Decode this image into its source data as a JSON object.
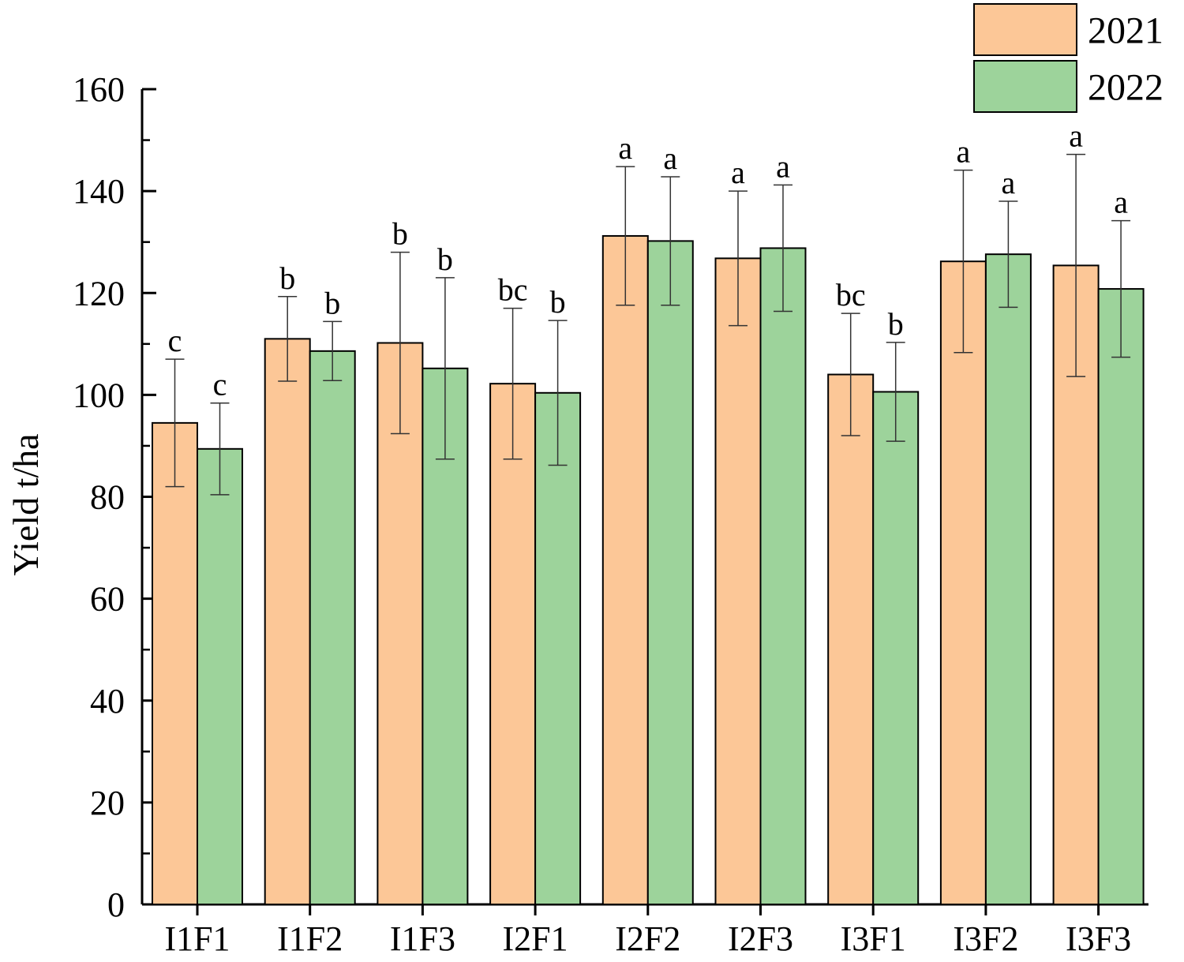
{
  "chart_data": {
    "type": "bar",
    "title": "",
    "xlabel": "",
    "ylabel": "Yield t/ha",
    "ylim": [
      0,
      160
    ],
    "yticks": [
      0,
      20,
      40,
      60,
      80,
      100,
      120,
      140,
      160
    ],
    "grid": false,
    "legend_position": "top-right",
    "categories": [
      "I1F1",
      "I1F2",
      "I1F3",
      "I2F1",
      "I2F2",
      "I2F3",
      "I3F1",
      "I3F2",
      "I3F3"
    ],
    "series": [
      {
        "name": "2021",
        "color": "#FCC797",
        "values": [
          94.5,
          111.0,
          110.2,
          102.2,
          131.2,
          126.8,
          104.0,
          126.2,
          125.4
        ],
        "error": [
          12.5,
          8.3,
          17.8,
          14.8,
          13.6,
          13.2,
          12.0,
          17.9,
          21.8
        ],
        "significance": [
          "c",
          "b",
          "b",
          "bc",
          "a",
          "a",
          "bc",
          "a",
          "a"
        ]
      },
      {
        "name": "2022",
        "color": "#9DD39B",
        "values": [
          89.4,
          108.6,
          105.2,
          100.4,
          130.2,
          128.8,
          100.6,
          127.6,
          120.8
        ],
        "error": [
          9.0,
          5.8,
          17.8,
          14.2,
          12.6,
          12.4,
          9.7,
          10.4,
          13.4
        ],
        "significance": [
          "c",
          "b",
          "b",
          "b",
          "a",
          "a",
          "b",
          "a",
          "a"
        ]
      }
    ]
  }
}
